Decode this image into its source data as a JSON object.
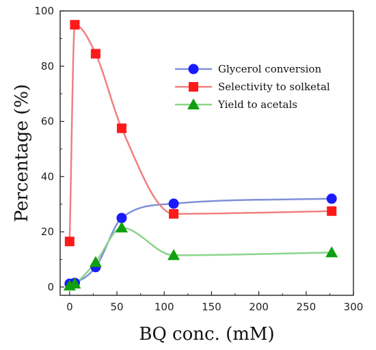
{
  "chart_data": {
    "type": "scatter",
    "xlabel": "BQ conc. (mM)",
    "ylabel": "Percentage (%)",
    "xlim": [
      -10,
      300
    ],
    "ylim": [
      -3,
      100
    ],
    "xticks": [
      0,
      50,
      100,
      150,
      200,
      250,
      300
    ],
    "yticks": [
      0,
      20,
      40,
      60,
      80,
      100
    ],
    "grid": false,
    "legend_position": "upper-right",
    "series": [
      {
        "name": "Glycerol conversion",
        "color": "#1a1aff",
        "line_color": "#7f8fd9",
        "marker": "circle",
        "x": [
          0,
          5.5,
          27.5,
          55,
          110,
          277
        ],
        "y": [
          1.2,
          1.5,
          7.2,
          25,
          30.2,
          32
        ]
      },
      {
        "name": "Selectivity to solketal",
        "color": "#ff1a1a",
        "line_color": "#f07f7f",
        "marker": "square",
        "x": [
          0,
          5.5,
          27.5,
          55,
          110,
          277
        ],
        "y": [
          16.5,
          95,
          84.5,
          57.5,
          26.5,
          27.5
        ]
      },
      {
        "name": "Yield to acetals",
        "color": "#0f9f0f",
        "line_color": "#8ad48a",
        "marker": "triangle",
        "x": [
          0,
          5.5,
          27.5,
          55,
          110,
          277
        ],
        "y": [
          0.5,
          1.2,
          9,
          21.5,
          11.5,
          12.5
        ]
      }
    ]
  }
}
